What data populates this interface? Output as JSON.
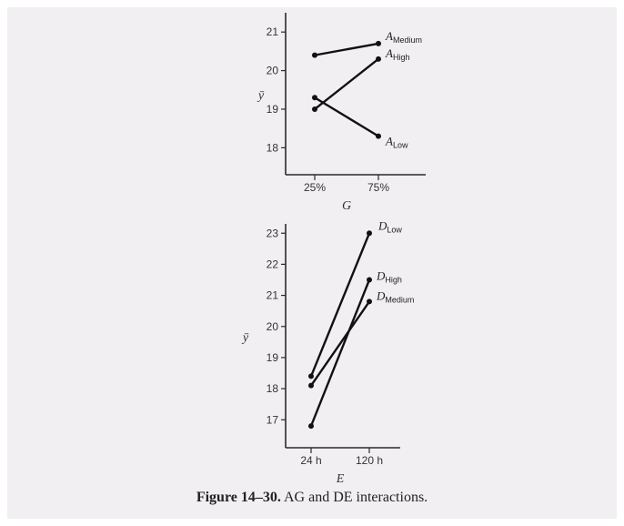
{
  "caption": {
    "label": "Figure 14–30.",
    "text": "AG and DE interactions."
  },
  "chart_data": [
    {
      "type": "line",
      "xlabel": "G",
      "ylabel": "ȳ",
      "categories": [
        "25%",
        "75%"
      ],
      "yticks": [
        18,
        19,
        20,
        21
      ],
      "ylim": [
        17.3,
        21.5
      ],
      "series": [
        {
          "name": "A",
          "sub": "Medium",
          "values": [
            20.4,
            20.7
          ]
        },
        {
          "name": "A",
          "sub": "High",
          "values": [
            19.0,
            20.3
          ]
        },
        {
          "name": "A",
          "sub": "Low",
          "values": [
            19.3,
            18.3
          ]
        }
      ]
    },
    {
      "type": "line",
      "xlabel": "E",
      "ylabel": "ȳ",
      "categories": [
        "24 h",
        "120 h"
      ],
      "yticks": [
        17,
        18,
        19,
        20,
        21,
        22,
        23
      ],
      "ylim": [
        16.1,
        23.3
      ],
      "series": [
        {
          "name": "D",
          "sub": "Low",
          "values": [
            18.4,
            23.0
          ]
        },
        {
          "name": "D",
          "sub": "High",
          "values": [
            16.8,
            21.5
          ]
        },
        {
          "name": "D",
          "sub": "Medium",
          "values": [
            18.1,
            20.8
          ]
        }
      ]
    }
  ]
}
